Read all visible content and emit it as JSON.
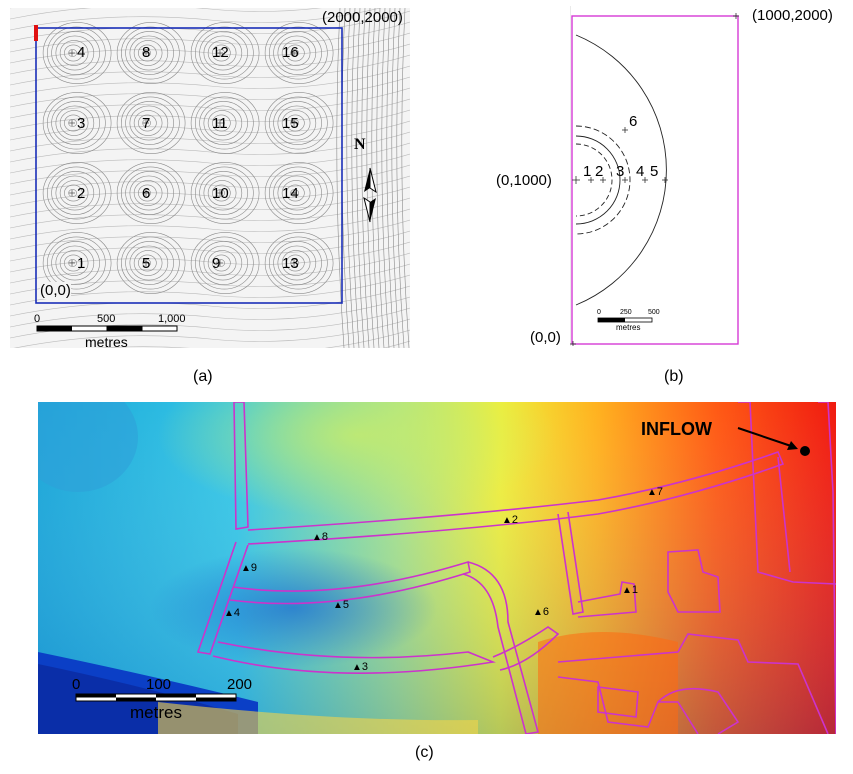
{
  "panel_a": {
    "caption": "(a)",
    "corner_top_right": "(2000,2000)",
    "corner_bottom_left": "(0,0)",
    "north_label": "N",
    "scale": {
      "ticks": [
        "0",
        "500",
        "1,000"
      ],
      "unit": "metres"
    },
    "wells": [
      "1",
      "2",
      "3",
      "4",
      "5",
      "6",
      "7",
      "8",
      "9",
      "10",
      "11",
      "12",
      "13",
      "14",
      "15",
      "16"
    ],
    "boundary_color": "#1a2fb8",
    "marker_color": "#e01010"
  },
  "panel_b": {
    "caption": "(b)",
    "corner_top_right": "(1000,2000)",
    "corner_left_mid": "(0,1000)",
    "corner_bottom_left": "(0,0)",
    "points": [
      "1",
      "2",
      "3",
      "4",
      "5",
      "6"
    ],
    "scale": {
      "ticks": [
        "0",
        "250",
        "500"
      ],
      "unit": "metres"
    },
    "boundary_color": "#d63ad6"
  },
  "panel_c": {
    "caption": "(c)",
    "inflow_label": "INFLOW",
    "gauges": [
      "1",
      "2",
      "3",
      "4",
      "5",
      "6",
      "7",
      "8",
      "9"
    ],
    "scale": {
      "ticks": [
        "0",
        "100",
        "200"
      ],
      "unit": "metres"
    },
    "road_color": "#cc33cc"
  }
}
